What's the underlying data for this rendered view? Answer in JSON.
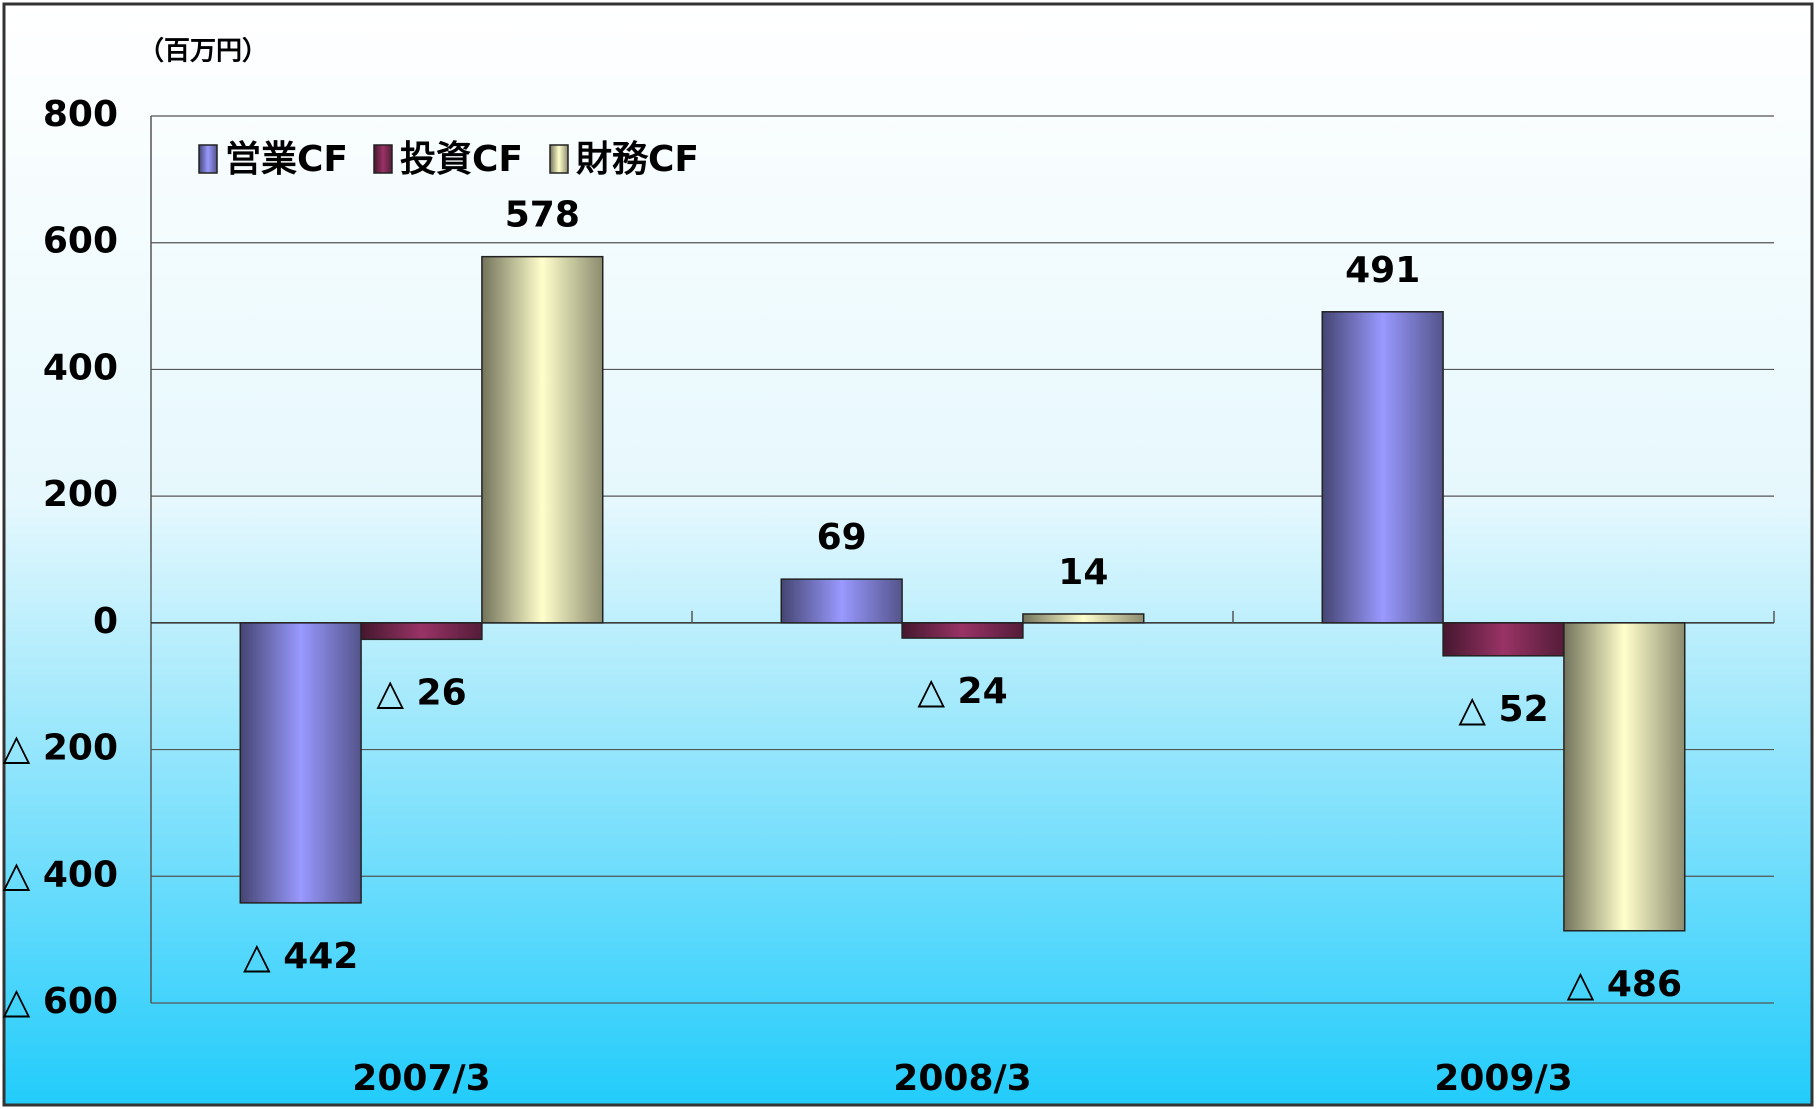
{
  "chart_data": {
    "type": "bar",
    "unit_label": "（百万円）",
    "categories": [
      "2007/3",
      "2008/3",
      "2009/3"
    ],
    "series": [
      {
        "name": "営業CF",
        "color": "#9999ff",
        "values": [
          -442,
          69,
          491
        ],
        "value_labels": [
          "△ 442",
          "69",
          "491"
        ]
      },
      {
        "name": "投資CF",
        "color": "#993366",
        "values": [
          -26,
          -24,
          -52
        ],
        "value_labels": [
          "△ 26",
          "△ 24",
          "△ 52"
        ]
      },
      {
        "name": "財務CF",
        "color": "#ffffcc",
        "values": [
          578,
          14,
          -486
        ],
        "value_labels": [
          "578",
          "14",
          "△ 486"
        ]
      }
    ],
    "ylim": [
      -600,
      800
    ],
    "yticks": [
      {
        "value": -600,
        "label": "△ 600"
      },
      {
        "value": -400,
        "label": "△ 400"
      },
      {
        "value": -200,
        "label": "△ 200"
      },
      0,
      200,
      400,
      600,
      800
    ],
    "grid": true,
    "legend": "top-left"
  }
}
